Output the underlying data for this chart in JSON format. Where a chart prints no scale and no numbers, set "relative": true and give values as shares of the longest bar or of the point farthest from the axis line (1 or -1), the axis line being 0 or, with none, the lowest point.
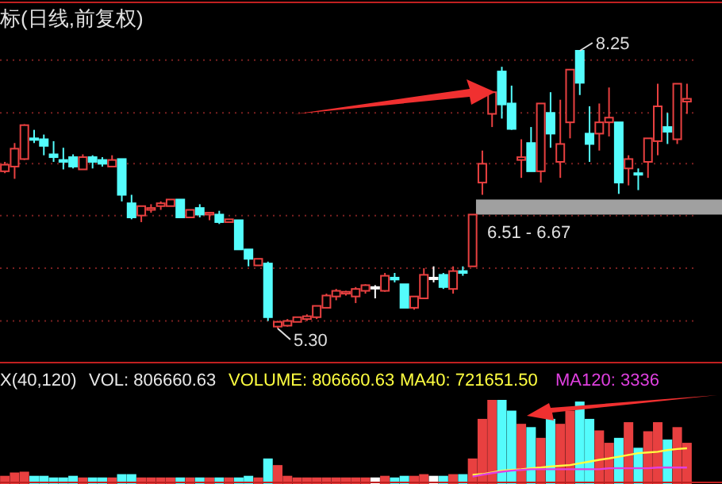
{
  "chart_data": [
    {
      "type": "candlestick",
      "title": "标(日线,前复权)",
      "categories": [
        null,
        null,
        null,
        null,
        null,
        null,
        null,
        null,
        null,
        null,
        null,
        null,
        null,
        null,
        null,
        null,
        null,
        null,
        null,
        null,
        null,
        null,
        null,
        null,
        null,
        null,
        null,
        null,
        null,
        null,
        null,
        null,
        null,
        null,
        null,
        null,
        null,
        null,
        null,
        null,
        null,
        null,
        null,
        null,
        null,
        null,
        null,
        null,
        null,
        null,
        null,
        null,
        null,
        null,
        null,
        null,
        null,
        null,
        null,
        null,
        null,
        null,
        null,
        null,
        null,
        null,
        null,
        null,
        null,
        null,
        null
      ],
      "ohlc": [
        [
          6.97,
          7.07,
          6.95,
          7.04
        ],
        [
          7.02,
          7.27,
          6.89,
          7.21
        ],
        [
          7.1,
          7.47,
          7.09,
          7.46
        ],
        [
          7.32,
          7.41,
          7.27,
          7.31
        ],
        [
          7.31,
          7.36,
          7.14,
          7.24
        ],
        [
          7.15,
          7.29,
          7.07,
          7.12
        ],
        [
          7.09,
          7.22,
          6.99,
          7.07
        ],
        [
          7.12,
          7.15,
          7.0,
          7.02
        ],
        [
          6.99,
          7.15,
          6.99,
          7.12
        ],
        [
          7.12,
          7.14,
          7.0,
          7.07
        ],
        [
          7.09,
          7.12,
          7.02,
          7.05
        ],
        [
          7.02,
          7.14,
          7.02,
          7.09
        ],
        [
          7.1,
          7.1,
          6.65,
          6.72
        ],
        [
          6.63,
          6.72,
          6.46,
          6.48
        ],
        [
          6.5,
          6.6,
          6.43,
          6.6
        ],
        [
          6.56,
          6.62,
          6.53,
          6.58
        ],
        [
          6.6,
          6.65,
          6.56,
          6.63
        ],
        [
          6.6,
          6.67,
          6.6,
          6.67
        ],
        [
          6.67,
          6.67,
          6.48,
          6.48
        ],
        [
          6.48,
          6.56,
          6.48,
          6.56
        ],
        [
          6.58,
          6.62,
          6.48,
          6.51
        ],
        [
          6.51,
          6.53,
          6.45,
          6.53
        ],
        [
          6.51,
          6.55,
          6.41,
          6.43
        ],
        [
          6.43,
          6.46,
          6.43,
          6.46
        ],
        [
          6.45,
          6.45,
          6.14,
          6.14
        ],
        [
          6.14,
          6.14,
          5.96,
          6.04
        ],
        [
          5.97,
          6.04,
          5.97,
          6.04
        ],
        [
          5.99,
          6.01,
          5.38,
          5.42
        ],
        [
          5.32,
          5.38,
          5.3,
          5.37
        ],
        [
          5.33,
          5.4,
          5.32,
          5.38
        ],
        [
          5.37,
          5.42,
          5.37,
          5.42
        ],
        [
          5.4,
          5.45,
          5.38,
          5.43
        ],
        [
          5.42,
          5.54,
          5.4,
          5.54
        ],
        [
          5.52,
          5.67,
          5.52,
          5.65
        ],
        [
          5.64,
          5.72,
          5.6,
          5.7
        ],
        [
          5.67,
          5.7,
          5.65,
          5.69
        ],
        [
          5.64,
          5.74,
          5.57,
          5.72
        ],
        [
          5.7,
          5.77,
          5.67,
          5.76
        ],
        [
          5.74,
          5.76,
          5.62,
          5.74
        ],
        [
          5.7,
          5.89,
          5.69,
          5.86
        ],
        [
          5.84,
          5.89,
          5.79,
          5.82
        ],
        [
          5.77,
          5.77,
          5.52,
          5.52
        ],
        [
          5.52,
          5.64,
          5.5,
          5.64
        ],
        [
          5.62,
          5.94,
          5.62,
          5.87
        ],
        [
          5.84,
          5.96,
          5.79,
          5.84
        ],
        [
          5.87,
          5.89,
          5.72,
          5.74
        ],
        [
          5.72,
          5.96,
          5.67,
          5.91
        ],
        [
          5.91,
          5.96,
          5.86,
          5.89
        ],
        [
          5.96,
          6.51,
          5.96,
          6.51
        ],
        [
          6.85,
          7.19,
          6.72,
          7.05
        ],
        [
          7.58,
          7.81,
          7.44,
          7.81
        ],
        [
          8.03,
          8.08,
          7.53,
          7.68
        ],
        [
          7.69,
          7.88,
          7.41,
          7.42
        ],
        [
          7.09,
          7.31,
          6.9,
          7.12
        ],
        [
          7.27,
          7.44,
          6.97,
          6.97
        ],
        [
          6.97,
          7.69,
          6.85,
          7.69
        ],
        [
          7.59,
          7.81,
          7.22,
          7.37
        ],
        [
          7.07,
          7.73,
          6.9,
          7.26
        ],
        [
          7.49,
          8.05,
          7.32,
          8.05
        ],
        [
          8.25,
          8.25,
          7.78,
          7.91
        ],
        [
          7.37,
          7.66,
          7.07,
          7.26
        ],
        [
          7.37,
          7.69,
          7.19,
          7.49
        ],
        [
          7.49,
          7.86,
          7.34,
          7.54
        ],
        [
          7.49,
          7.49,
          6.73,
          6.85
        ],
        [
          7.0,
          7.14,
          6.82,
          7.1
        ],
        [
          6.95,
          7.0,
          6.77,
          6.94
        ],
        [
          7.07,
          7.32,
          6.9,
          7.32
        ],
        [
          7.29,
          7.9,
          7.14,
          7.66
        ],
        [
          7.44,
          7.59,
          7.26,
          7.39
        ],
        [
          7.31,
          7.9,
          7.26,
          7.9
        ],
        [
          7.71,
          7.9,
          7.58,
          7.74
        ]
      ],
      "colors": [
        "#e84040",
        "#e84040",
        "#e84040",
        "#54fcfc",
        "#54fcfc",
        "#54fcfc",
        "#54fcfc",
        "#54fcfc",
        "#e84040",
        "#54fcfc",
        "#54fcfc",
        "#e84040",
        "#54fcfc",
        "#54fcfc",
        "#e84040",
        "#e84040",
        "#e84040",
        "#e84040",
        "#54fcfc",
        "#e84040",
        "#54fcfc",
        "#e84040",
        "#54fcfc",
        "#e84040",
        "#54fcfc",
        "#54fcfc",
        "#e84040",
        "#54fcfc",
        "#e84040",
        "#e84040",
        "#e84040",
        "#e84040",
        "#e84040",
        "#e84040",
        "#e84040",
        "#e84040",
        "#e84040",
        "#e84040",
        "#ffffff",
        "#e84040",
        "#54fcfc",
        "#54fcfc",
        "#e84040",
        "#e84040",
        "#ffffff",
        "#54fcfc",
        "#e84040",
        "#54fcfc",
        "#e84040",
        "#e84040",
        "#e84040",
        "#54fcfc",
        "#54fcfc",
        "#e84040",
        "#54fcfc",
        "#e84040",
        "#54fcfc",
        "#e84040",
        "#e84040",
        "#54fcfc",
        "#54fcfc",
        "#e84040",
        "#e84040",
        "#54fcfc",
        "#e84040",
        "#54fcfc",
        "#e84040",
        "#e84040",
        "#54fcfc",
        "#e84040",
        "#e84040"
      ],
      "yticks": [
        {
          "value": 8.15,
          "label": null
        },
        {
          "value": 7.59,
          "label": null
        },
        {
          "value": 7.05,
          "label": null
        },
        {
          "value": 6.5,
          "label": null
        },
        {
          "value": 5.94,
          "label": null
        },
        {
          "value": 5.38,
          "label": null
        }
      ],
      "grid": "y",
      "bands": [
        {
          "axis": "y",
          "from": 6.51,
          "to": 6.67,
          "label": "6.51 - 6.67",
          "color": "#a0a0a0"
        }
      ],
      "annotations": [
        "8.25",
        "5.30"
      ]
    },
    {
      "type": "bar",
      "relative": true,
      "categories": [
        null,
        null,
        null,
        null,
        null,
        null,
        null,
        null,
        null,
        null,
        null,
        null,
        null,
        null,
        null,
        null,
        null,
        null,
        null,
        null,
        null,
        null,
        null,
        null,
        null,
        null,
        null,
        null,
        null,
        null,
        null,
        null,
        null,
        null,
        null,
        null,
        null,
        null,
        null,
        null,
        null,
        null,
        null,
        null,
        null,
        null,
        null,
        null,
        null,
        null,
        null,
        null,
        null,
        null,
        null,
        null,
        null,
        null,
        null,
        null,
        null,
        null,
        null,
        null,
        null,
        null,
        null,
        null,
        null,
        null,
        null
      ],
      "values": [
        0.08,
        0.12,
        0.13,
        0.08,
        0.08,
        0.06,
        0.06,
        0.08,
        0.06,
        0.06,
        0.06,
        0.06,
        0.1,
        0.1,
        0.06,
        0.06,
        0.06,
        0.06,
        0.06,
        0.06,
        0.06,
        0.06,
        0.06,
        0.06,
        0.06,
        0.08,
        0.06,
        0.29,
        0.21,
        0.08,
        0.06,
        0.06,
        0.06,
        0.06,
        0.06,
        0.06,
        0.06,
        0.06,
        0.06,
        0.08,
        0.06,
        0.08,
        0.08,
        0.1,
        0.08,
        0.08,
        0.1,
        0.1,
        0.29,
        0.77,
        1,
        1,
        0.87,
        0.71,
        0.67,
        0.54,
        0.77,
        0.71,
        0.87,
        0.98,
        0.77,
        0.63,
        0.48,
        0.54,
        0.73,
        0.42,
        0.62,
        0.73,
        0.52,
        0.67,
        0.48
      ],
      "colors": [
        "#e84040",
        "#e84040",
        "#e84040",
        "#54fcfc",
        "#54fcfc",
        "#54fcfc",
        "#54fcfc",
        "#54fcfc",
        "#e84040",
        "#54fcfc",
        "#54fcfc",
        "#e84040",
        "#54fcfc",
        "#54fcfc",
        "#e84040",
        "#e84040",
        "#e84040",
        "#e84040",
        "#54fcfc",
        "#e84040",
        "#54fcfc",
        "#e84040",
        "#54fcfc",
        "#e84040",
        "#54fcfc",
        "#54fcfc",
        "#e84040",
        "#54fcfc",
        "#e84040",
        "#e84040",
        "#e84040",
        "#e84040",
        "#e84040",
        "#e84040",
        "#e84040",
        "#e84040",
        "#e84040",
        "#e84040",
        "#ffffff",
        "#e84040",
        "#54fcfc",
        "#54fcfc",
        "#e84040",
        "#e84040",
        "#ffffff",
        "#54fcfc",
        "#e84040",
        "#54fcfc",
        "#e84040",
        "#e84040",
        "#e84040",
        "#54fcfc",
        "#54fcfc",
        "#e84040",
        "#54fcfc",
        "#e84040",
        "#54fcfc",
        "#e84040",
        "#e84040",
        "#54fcfc",
        "#54fcfc",
        "#e84040",
        "#e84040",
        "#54fcfc",
        "#e84040",
        "#54fcfc",
        "#e84040",
        "#e84040",
        "#54fcfc",
        "#e84040",
        "#e84040"
      ],
      "annotations": [
        "X(40,120)",
        "VOL: 806660.63",
        "VOLUME: 806660.63",
        "MA40: 721651.50",
        "MA120: 3336"
      ]
    },
    {
      "type": "line",
      "relative": true,
      "categories": [
        null,
        null,
        null,
        null,
        null,
        null,
        null,
        null,
        null,
        null,
        null,
        null,
        null,
        null,
        null,
        null,
        null,
        null,
        null,
        null,
        null,
        null,
        null
      ],
      "series": [
        {
          "color": "#ffff40",
          "values": [
            0.24,
            0.26,
            0.31,
            0.36,
            0.38,
            0.4,
            0.43,
            0.45,
            0.48,
            0.5,
            0.52,
            0.57,
            0.62,
            0.67,
            0.71,
            0.76,
            0.81,
            0.86,
            0.88,
            0.9,
            0.95,
            0.98,
            1
          ]
        },
        {
          "color": "#e040e0",
          "values": [
            0.19,
            0.24,
            0.29,
            0.33,
            0.36,
            0.38,
            0.4,
            0.4,
            0.4,
            0.4,
            0.4,
            0.4,
            0.4,
            0.4,
            0.43,
            0.43,
            0.43,
            0.43,
            0.43,
            0.45,
            0.45,
            0.45,
            0.45
          ]
        }
      ]
    }
  ]
}
